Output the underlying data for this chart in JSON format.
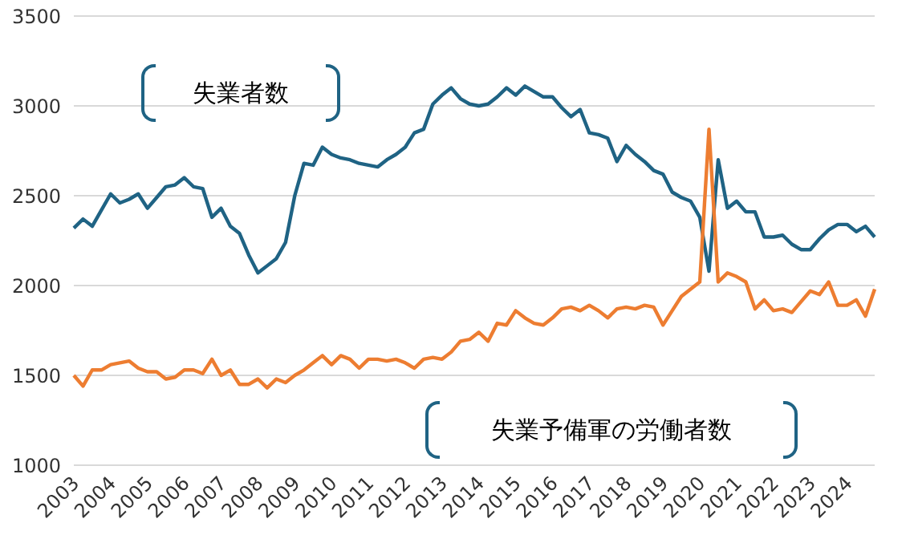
{
  "chart_data": {
    "type": "line",
    "categories": [
      "2003",
      null,
      null,
      null,
      "2004",
      null,
      null,
      null,
      "2005",
      null,
      null,
      null,
      "2006",
      null,
      null,
      null,
      "2007",
      null,
      null,
      null,
      "2008",
      null,
      null,
      null,
      "2009",
      null,
      null,
      null,
      "2010",
      null,
      null,
      null,
      "2011",
      null,
      null,
      null,
      "2012",
      null,
      null,
      null,
      "2013",
      null,
      null,
      null,
      "2014",
      null,
      null,
      null,
      "2015",
      null,
      null,
      null,
      "2016",
      null,
      null,
      null,
      "2017",
      null,
      null,
      null,
      "2018",
      null,
      null,
      null,
      "2019",
      null,
      null,
      null,
      "2020",
      null,
      null,
      null,
      "2021",
      null,
      null,
      null,
      "2022",
      null,
      null,
      null,
      "2023",
      null,
      null,
      null,
      "2024",
      null,
      null,
      null
    ],
    "series": [
      {
        "color": "#1f6384",
        "values": [
          2320,
          2370,
          2330,
          2420,
          2510,
          2460,
          2480,
          2510,
          2430,
          2490,
          2550,
          2560,
          2600,
          2550,
          2540,
          2380,
          2430,
          2330,
          2290,
          2170,
          2070,
          2110,
          2150,
          2240,
          2500,
          2680,
          2670,
          2770,
          2730,
          2710,
          2700,
          2680,
          2670,
          2660,
          2700,
          2730,
          2770,
          2850,
          2870,
          3010,
          3060,
          3100,
          3040,
          3010,
          3000,
          3010,
          3050,
          3100,
          3060,
          3110,
          3080,
          3050,
          3050,
          2990,
          2940,
          2980,
          2850,
          2840,
          2820,
          2690,
          2780,
          2730,
          2690,
          2640,
          2620,
          2520,
          2490,
          2470,
          2380,
          2080,
          2700,
          2430,
          2470,
          2410,
          2410,
          2270,
          2270,
          2280,
          2230,
          2200,
          2200,
          2260,
          2310,
          2340,
          2340,
          2300,
          2330,
          2270
        ]
      },
      {
        "color": "#ed7d31",
        "values": [
          1500,
          1440,
          1530,
          1530,
          1560,
          1570,
          1580,
          1540,
          1520,
          1520,
          1480,
          1490,
          1530,
          1530,
          1510,
          1590,
          1500,
          1530,
          1450,
          1450,
          1480,
          1430,
          1480,
          1460,
          1500,
          1530,
          1570,
          1610,
          1560,
          1610,
          1590,
          1540,
          1590,
          1590,
          1580,
          1590,
          1570,
          1540,
          1590,
          1600,
          1590,
          1630,
          1690,
          1700,
          1740,
          1690,
          1790,
          1780,
          1860,
          1820,
          1790,
          1780,
          1820,
          1870,
          1880,
          1860,
          1890,
          1860,
          1820,
          1870,
          1880,
          1870,
          1890,
          1880,
          1780,
          1860,
          1940,
          1980,
          2020,
          2870,
          2020,
          2070,
          2050,
          2020,
          1870,
          1920,
          1860,
          1870,
          1850,
          1910,
          1970,
          1950,
          2020,
          1890,
          1890,
          1920,
          1830,
          1980
        ]
      }
    ],
    "ylim": [
      1000,
      3500
    ],
    "yticks": [
      1000,
      1500,
      2000,
      2500,
      3000,
      3500
    ],
    "annotations": [
      "失業者数",
      "失業予備軍の労働者数"
    ],
    "grid": "y",
    "marker": "none",
    "line_style": "solid"
  }
}
